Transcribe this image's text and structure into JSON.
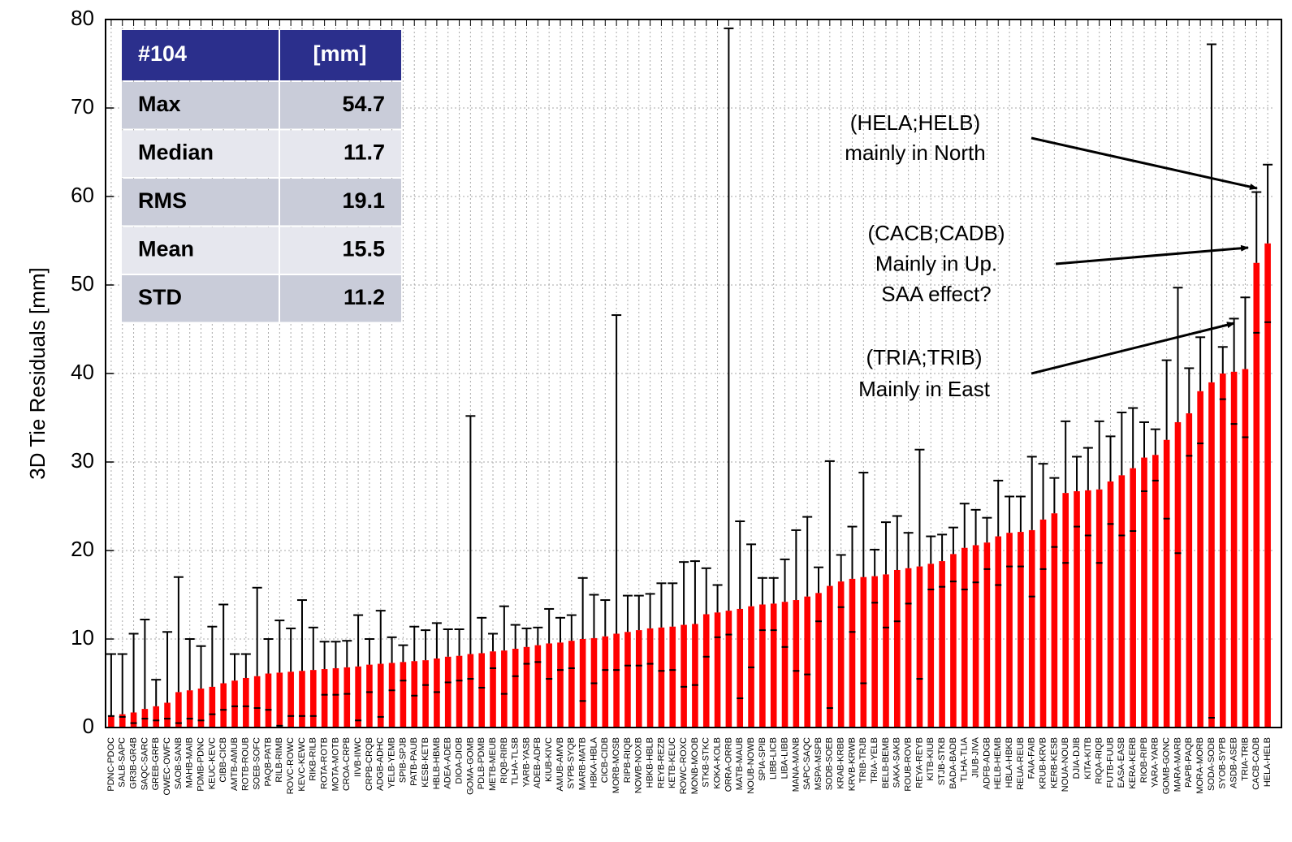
{
  "chart_data": {
    "type": "bar",
    "ylabel": "3D Tie Residuals [mm]",
    "ylim": [
      0,
      80
    ],
    "yticks": [
      0,
      10,
      20,
      30,
      40,
      50,
      60,
      70,
      80
    ],
    "grid": true,
    "color": "#ff0000",
    "whisker_color": "#000000",
    "categories": [
      "PDNC-PDOC",
      "SALB-SAPC",
      "GR3B-GR4B",
      "SAQC-SARC",
      "GREB-GRFB",
      "OWEC-OWFC",
      "SAOB-SANB",
      "MAHB-MAIB",
      "PDMB-PDNC",
      "KEUC-KEVC",
      "CIBB-CICB",
      "AMTB-AMUB",
      "ROTB-ROUB",
      "SOEB-SOFC",
      "PAQB-PATB",
      "RILB-RIMB",
      "ROVC-ROWC",
      "KEVC-KEWC",
      "RIKB-RILB",
      "ROTA-ROTB",
      "MOTA-MOTB",
      "CROA-CRPB",
      "IIVB-IIWC",
      "CRPB-CRQB",
      "ADGB-ADHC",
      "YELB-YEMB",
      "SPIB-SPJB",
      "PATB-PAUB",
      "KESB-KETB",
      "HBLB-HBMB",
      "ADEA-ADEB",
      "DIOA-DIOB",
      "GOMA-GOMB",
      "PDLB-PDMB",
      "METB-MEUB",
      "RIQB-RIRB",
      "TLHA-TLSB",
      "YARB-YASB",
      "ADEB-ADFB",
      "KIUB-KIVC",
      "AMUB-AMVB",
      "SYPB-SYQB",
      "MARB-MATB",
      "HBKA-HBLA",
      "CICB-CIDB",
      "MORB-MOSB",
      "RIPB-RIQB",
      "NOWB-NOXB",
      "HBKB-HBLB",
      "REYB-REZB",
      "KETB-KEUC",
      "ROWC-ROXC",
      "MONB-MOOB",
      "STKB-STKC",
      "KOKA-KOLB",
      "ORRA-ORRB",
      "MATB-MAUB",
      "NOUB-NOWB",
      "SPIA-SPIB",
      "LIBB-LICB",
      "LIBA-LIBB",
      "MANA-MANB",
      "SAPC-SAQC",
      "MSPA-MSPB",
      "SODB-SOEB",
      "KRAB-KRBB",
      "KRVB-KRWB",
      "TRIB-TRJB",
      "TRIA-YELB",
      "BELB-BEMB",
      "SAKA-SAKB",
      "ROUB-ROVB",
      "REYA-REYB",
      "KITB-KIUB",
      "STJB-STKB",
      "BADA-BADB",
      "TLHA-TLIA",
      "JIUB-JIVA",
      "ADFB-ADGB",
      "HELB-HEMB",
      "HBLA-HBKB",
      "REUA-REUB",
      "FAIA-FAIB",
      "KRUB-KRVB",
      "KERB-KESB",
      "NOUA-NOUB",
      "DJIA-DJIB",
      "KITA-KITB",
      "RIQA-RIQB",
      "FUTB-FUUB",
      "EASA-EASB",
      "KERA-KERB",
      "RIOB-RIPB",
      "YARA-YARB",
      "GOMB-GONC",
      "MARA-MARB",
      "PAPB-PAQB",
      "MORA-MORB",
      "SODA-SODB",
      "SYOB-SYPB",
      "ASDB-ASEB",
      "TRIA-TRIB",
      "CACB-CADB",
      "HELA-HELB"
    ],
    "values": [
      1.3,
      1.5,
      1.7,
      2.1,
      2.4,
      2.8,
      4.0,
      4.2,
      4.4,
      4.6,
      5.0,
      5.3,
      5.6,
      5.8,
      6.1,
      6.2,
      6.3,
      6.4,
      6.5,
      6.6,
      6.7,
      6.8,
      6.9,
      7.1,
      7.2,
      7.3,
      7.4,
      7.5,
      7.6,
      7.8,
      8.0,
      8.1,
      8.3,
      8.4,
      8.6,
      8.7,
      8.9,
      9.1,
      9.3,
      9.5,
      9.6,
      9.8,
      10.0,
      10.1,
      10.3,
      10.6,
      10.8,
      11.0,
      11.2,
      11.3,
      11.4,
      11.6,
      11.7,
      12.8,
      13.0,
      13.2,
      13.4,
      13.7,
      13.9,
      14.0,
      14.2,
      14.4,
      14.8,
      15.2,
      16.0,
      16.5,
      16.8,
      17.0,
      17.1,
      17.3,
      17.8,
      18.0,
      18.2,
      18.5,
      18.8,
      19.6,
      20.3,
      20.6,
      20.9,
      21.6,
      22.0,
      22.1,
      22.3,
      23.5,
      24.2,
      26.5,
      26.7,
      26.8,
      26.9,
      27.8,
      28.5,
      29.3,
      30.5,
      30.8,
      32.5,
      34.5,
      35.5,
      38.0,
      39.0,
      40.0,
      40.2,
      40.5,
      52.5,
      54.7
    ],
    "upper": [
      8.3,
      8.3,
      10.6,
      12.2,
      5.4,
      10.8,
      17.0,
      10.0,
      9.2,
      11.4,
      13.9,
      8.3,
      8.3,
      15.8,
      10.0,
      12.1,
      11.2,
      14.4,
      11.3,
      9.7,
      9.7,
      9.8,
      12.7,
      10.0,
      13.2,
      10.2,
      9.3,
      11.4,
      11.0,
      11.8,
      11.1,
      11.1,
      35.2,
      12.4,
      10.6,
      13.7,
      11.6,
      11.2,
      11.3,
      13.4,
      12.4,
      12.7,
      16.9,
      15.0,
      14.4,
      46.6,
      14.9,
      14.9,
      15.1,
      16.3,
      16.3,
      18.7,
      18.8,
      18.0,
      16.1,
      79.0,
      23.3,
      20.7,
      16.9,
      16.9,
      19.0,
      22.3,
      23.8,
      18.1,
      30.1,
      19.5,
      22.7,
      28.8,
      20.1,
      23.2,
      23.9,
      22.0,
      31.4,
      21.6,
      21.8,
      22.6,
      25.3,
      24.6,
      23.7,
      27.9,
      26.1,
      26.1,
      30.6,
      29.8,
      28.2,
      34.6,
      30.6,
      31.6,
      34.6,
      32.9,
      35.6,
      36.1,
      34.5,
      33.7,
      41.5,
      49.7,
      40.6,
      44.1,
      77.2,
      43.0,
      46.2,
      48.6,
      60.5,
      63.6
    ],
    "lower": [
      1.3,
      1.2,
      0.5,
      1.0,
      0.8,
      1.0,
      0.5,
      1.0,
      0.8,
      1.5,
      2.0,
      2.4,
      2.4,
      2.2,
      2.0,
      0.2,
      1.3,
      1.3,
      1.3,
      3.7,
      3.7,
      3.8,
      0.8,
      4.0,
      1.2,
      4.2,
      5.3,
      3.6,
      4.8,
      4.0,
      5.1,
      5.3,
      5.5,
      4.5,
      6.7,
      3.8,
      5.8,
      7.2,
      7.4,
      5.5,
      6.5,
      6.7,
      3.0,
      5.0,
      6.5,
      6.5,
      7.0,
      7.0,
      7.2,
      6.4,
      6.5,
      4.6,
      4.8,
      8.0,
      10.2,
      10.5,
      3.3,
      6.8,
      11.0,
      11.0,
      9.1,
      6.4,
      6.0,
      12.0,
      2.2,
      13.6,
      10.8,
      5.0,
      14.1,
      11.3,
      12.0,
      14.0,
      5.5,
      15.6,
      15.9,
      16.5,
      15.6,
      16.4,
      17.9,
      16.1,
      18.2,
      18.2,
      14.8,
      17.9,
      20.4,
      18.6,
      22.7,
      21.7,
      18.6,
      23.0,
      21.7,
      22.2,
      26.7,
      27.9,
      23.6,
      19.7,
      30.7,
      32.1,
      1.1,
      37.1,
      34.3,
      32.8,
      44.6,
      45.8
    ],
    "annotations": [
      [
        "(HELA;HELB)",
        "mainly in North"
      ],
      [
        "(CACB;CADB)",
        "Mainly in Up.",
        "SAA effect?"
      ],
      [
        "(TRIA;TRIB)",
        "Mainly in East"
      ]
    ]
  },
  "table": {
    "header": [
      "#104",
      "[mm]"
    ],
    "rows": [
      [
        "Max",
        54.7
      ],
      [
        "Median",
        11.7
      ],
      [
        "RMS",
        19.1
      ],
      [
        "Mean",
        15.5
      ],
      [
        "STD",
        11.2
      ]
    ]
  }
}
